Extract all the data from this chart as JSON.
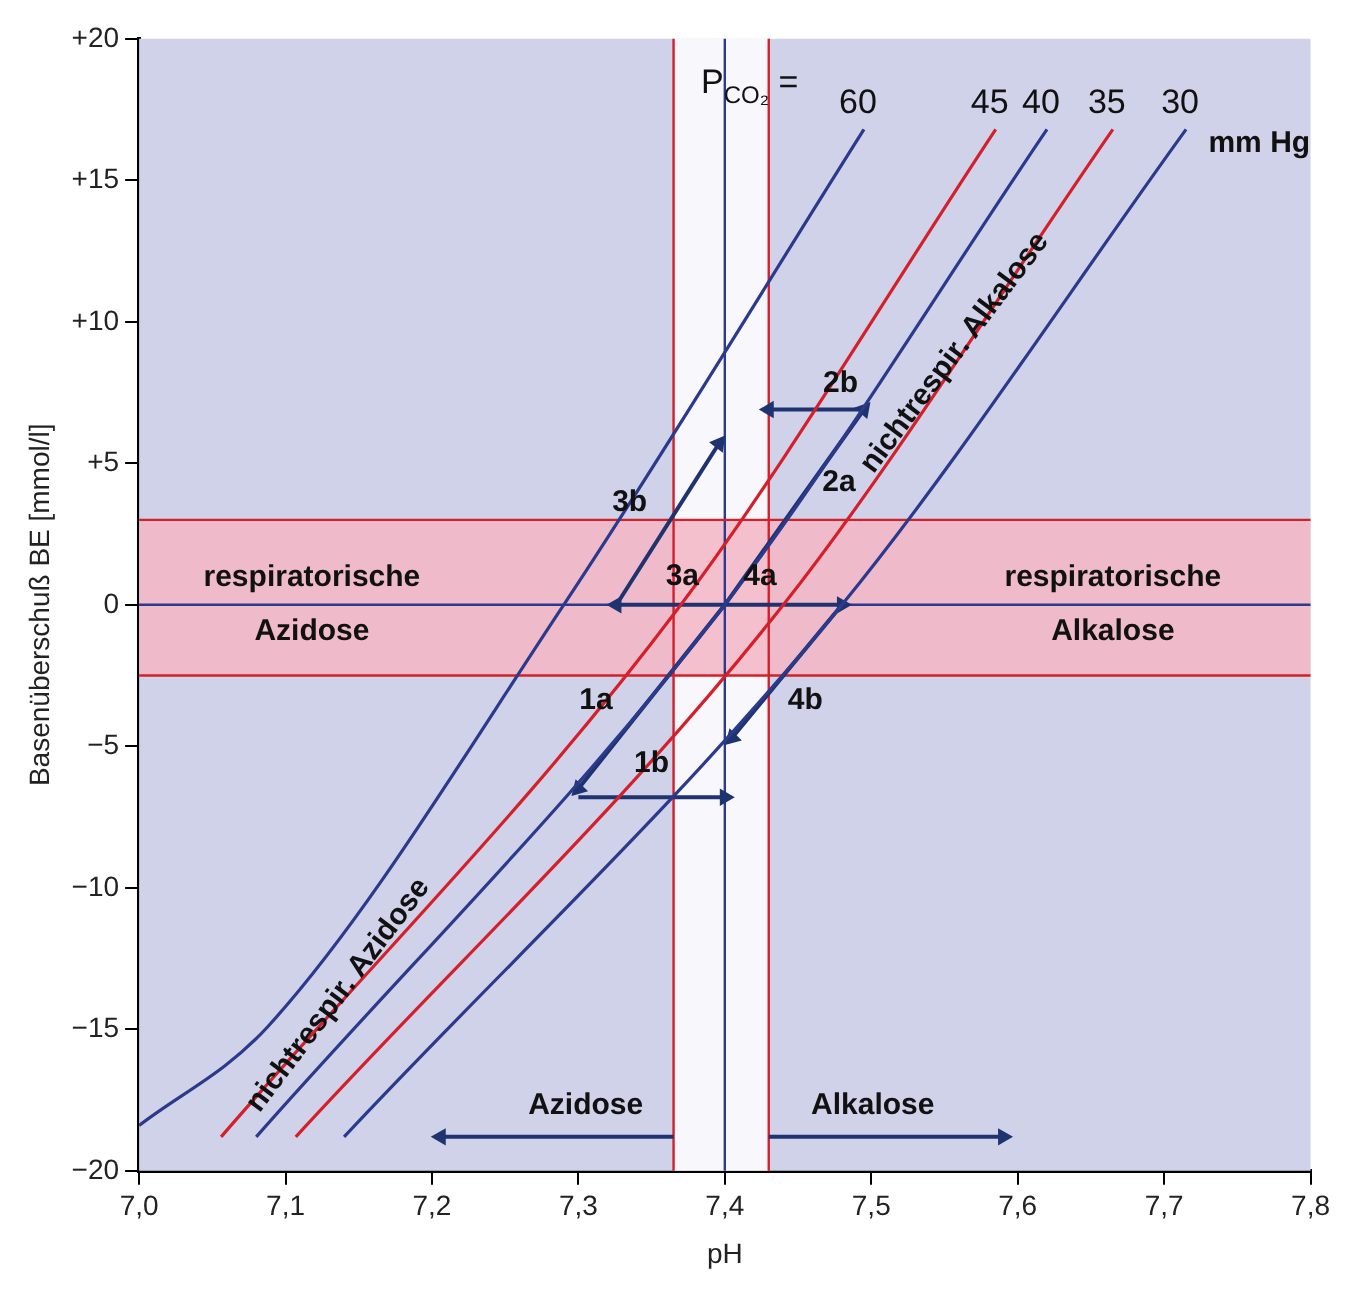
{
  "chart_data": {
    "type": "line",
    "xlabel": "pH",
    "ylabel": "Basenüberschuß BE [mmol/l]",
    "xlim": [
      7.0,
      7.8
    ],
    "xticks": [
      {
        "value": 7.0,
        "label": "7,0"
      },
      {
        "value": 7.1,
        "label": "7,1"
      },
      {
        "value": 7.2,
        "label": "7,2"
      },
      {
        "value": 7.3,
        "label": "7,3"
      },
      {
        "value": 7.4,
        "label": "7,4"
      },
      {
        "value": 7.5,
        "label": "7,5"
      },
      {
        "value": 7.6,
        "label": "7,6"
      },
      {
        "value": 7.7,
        "label": "7,7"
      },
      {
        "value": 7.8,
        "label": "7,8"
      }
    ],
    "ylim": [
      -20,
      20
    ],
    "yticks": [
      {
        "value": 20,
        "label": "+20"
      },
      {
        "value": 15,
        "label": "+15"
      },
      {
        "value": 10,
        "label": "+10"
      },
      {
        "value": 5,
        "label": "+5"
      },
      0,
      {
        "value": -5,
        "label": "−5"
      },
      {
        "value": -10,
        "label": "−10"
      },
      {
        "value": -15,
        "label": "−15"
      },
      {
        "value": -20,
        "label": "−20"
      }
    ],
    "grid": false,
    "legend": false,
    "series": [
      {
        "name": "60",
        "color": "#2b3a8c",
        "x": [
          7.0,
          7.088,
          7.29,
          7.495
        ],
        "values": [
          -18.4,
          -14.9,
          0,
          16.8
        ]
      },
      {
        "name": "45",
        "color": "#d4202a",
        "x": [
          7.056,
          7.37,
          7.585
        ],
        "values": [
          -18.8,
          0,
          16.8
        ]
      },
      {
        "name": "40",
        "color": "#2b3a8c",
        "x": [
          7.08,
          7.4,
          7.62
        ],
        "values": [
          -18.8,
          0,
          16.8
        ]
      },
      {
        "name": "35",
        "color": "#d4202a",
        "x": [
          7.107,
          7.44,
          7.665
        ],
        "values": [
          -18.8,
          0,
          16.8
        ]
      },
      {
        "name": "30",
        "color": "#2b3a8c",
        "x": [
          7.14,
          7.48,
          7.715
        ],
        "values": [
          -18.8,
          0,
          16.8
        ]
      },
      {
        "color": "#1f3370",
        "marker": "triangle",
        "x": [
          7.4,
          7.3
        ],
        "values": [
          0,
          -6.5
        ]
      },
      {
        "color": "#1f3370",
        "marker": "triangle",
        "x": [
          7.3,
          7.4
        ],
        "values": [
          -6.8,
          -6.8
        ]
      },
      {
        "color": "#1f3370",
        "marker": "triangle",
        "x": [
          7.4,
          7.495
        ],
        "values": [
          0,
          6.9
        ]
      },
      {
        "color": "#1f3370",
        "marker": "triangle",
        "x": [
          7.495,
          7.43
        ],
        "values": [
          6.9,
          6.9
        ]
      },
      {
        "color": "#1f3370",
        "marker": "triangle",
        "x": [
          7.4,
          7.326
        ],
        "values": [
          0,
          0
        ]
      },
      {
        "color": "#1f3370",
        "marker": "triangle",
        "x": [
          7.326,
          7.396
        ],
        "values": [
          0,
          5.7
        ]
      },
      {
        "color": "#1f3370",
        "marker": "triangle",
        "x": [
          7.4,
          7.48
        ],
        "values": [
          0,
          0
        ]
      },
      {
        "color": "#1f3370",
        "marker": "triangle",
        "x": [
          7.48,
          7.405
        ],
        "values": [
          0,
          -4.7
        ]
      },
      {
        "color": "#1f3370",
        "marker": "triangle",
        "x": [
          7.365,
          7.206
        ],
        "values": [
          -18.8,
          -18.8
        ]
      },
      {
        "color": "#1f3370",
        "marker": "triangle",
        "x": [
          7.43,
          7.59
        ],
        "values": [
          -18.8,
          -18.8
        ]
      }
    ],
    "bands": [
      {
        "axis": "x",
        "from": 7.365,
        "to": 7.43,
        "color": "#ffffff"
      },
      {
        "axis": "y",
        "from": -2.5,
        "to": 3,
        "color": "#f4b6c4"
      }
    ],
    "ref_lines": [
      {
        "axis": "x",
        "value": 7.4,
        "color": "#2b3a8c"
      },
      {
        "axis": "y",
        "value": 0,
        "color": "#2b3a8c"
      },
      {
        "axis": "x",
        "value": 7.365,
        "color": "#d4202a"
      },
      {
        "axis": "x",
        "value": 7.43,
        "color": "#d4202a"
      },
      {
        "axis": "y",
        "value": 3,
        "color": "#d4202a"
      },
      {
        "axis": "y",
        "value": -2.5,
        "color": "#d4202a"
      }
    ],
    "annotations": [
      "P$_{CO₂}$ =",
      "mm Hg",
      {
        "text": "respiratorische\nAzidose",
        "x": 7.118,
        "y": 0
      },
      {
        "text": "respiratorische\nAlkalose",
        "x": 7.665,
        "y": 0
      },
      "Azidose",
      "Alkalose",
      {
        "text": "nichtrespir. Azidose",
        "x": 7.136,
        "y": -13.8
      },
      {
        "text": "nichtrespir. Alkalose",
        "x": 7.557,
        "y": 8.9
      },
      {
        "text": "1a",
        "x": 7.312,
        "y": -3.4
      },
      "1b",
      "2a",
      {
        "text": "2b",
        "x": 7.479,
        "y": 7.8
      },
      {
        "text": "3a",
        "x": 7.371,
        "y": 1.0
      },
      {
        "text": "3b",
        "x": 7.335,
        "y": 3.6
      },
      {
        "text": "4a",
        "x": 7.424,
        "y": 1.0
      },
      "4b"
    ]
  }
}
